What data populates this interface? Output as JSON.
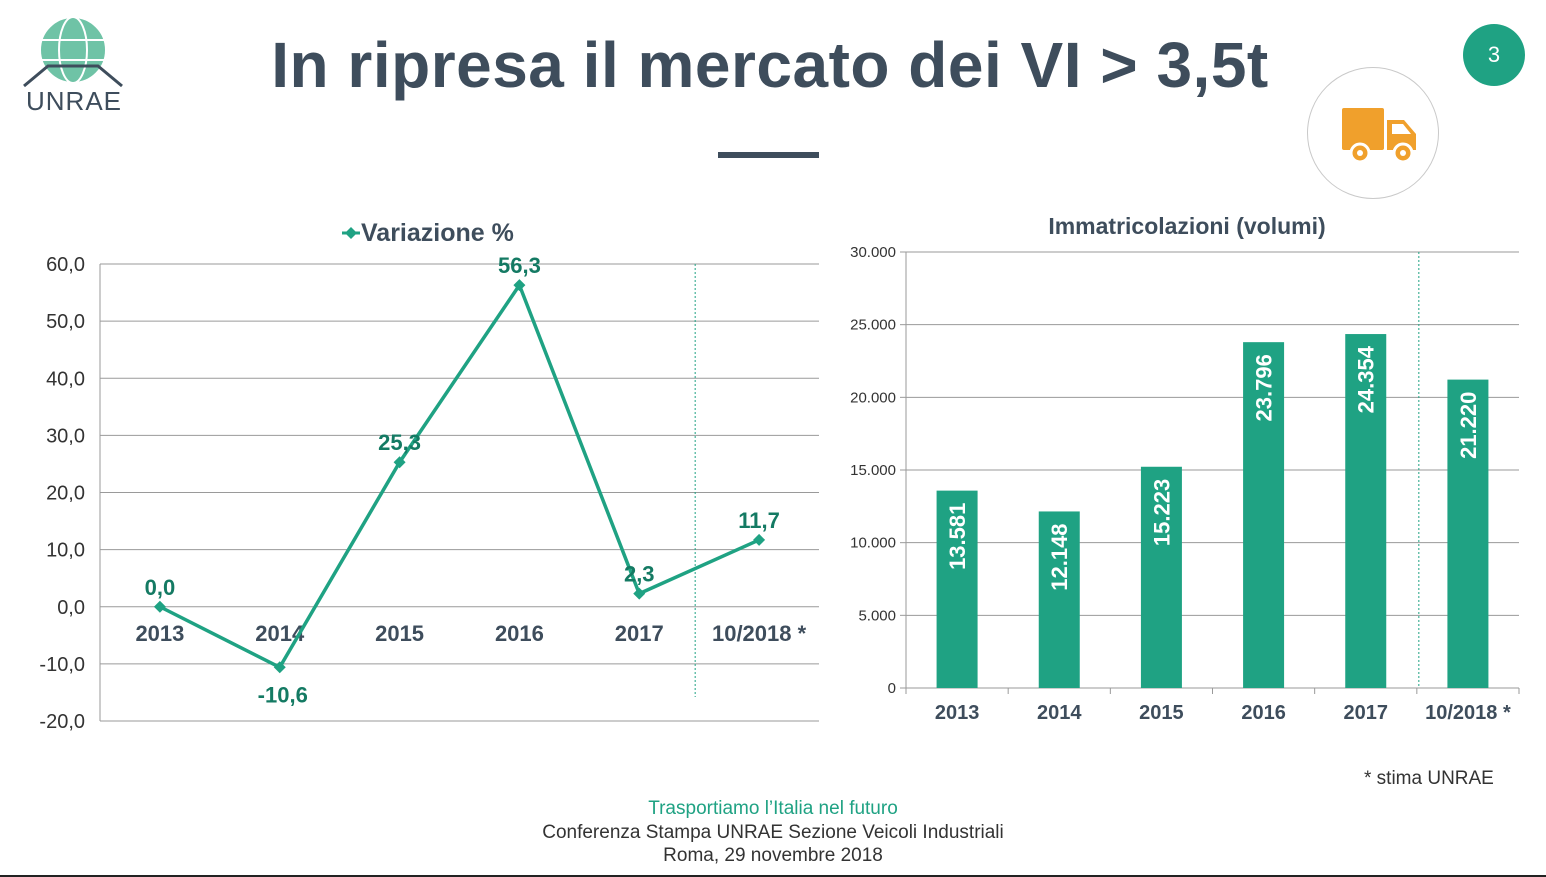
{
  "header": {
    "logo_text": "UNRAE",
    "title": "In ripresa il mercato dei VI > 3,5t",
    "page_number": "3",
    "icon": "truck-icon",
    "accent_color": "#1fa283",
    "icon_color": "#f0a02c"
  },
  "footnote": "* stima UNRAE",
  "footer": {
    "tagline": "Trasportiamo l’Italia nel futuro",
    "event": "Conferenza Stampa UNRAE Sezione Veicoli Industriali",
    "place_date": "Roma, 29 novembre 2018"
  },
  "chart_data": [
    {
      "type": "line",
      "title": "",
      "legend": "Variazione %",
      "legend_position": "top",
      "categories": [
        "2013",
        "2014",
        "2015",
        "2016",
        "2017",
        "10/2018 *"
      ],
      "series": [
        {
          "name": "Variazione %",
          "values": [
            0.0,
            -10.6,
            25.3,
            56.3,
            2.3,
            11.7
          ],
          "labels": [
            "0,0",
            "-10,6",
            "25,3",
            "56,3",
            "2,3",
            "11,7"
          ],
          "color": "#1fa283"
        }
      ],
      "ylim": [
        -20,
        60
      ],
      "yticks": [
        "-20,0",
        "-10,0",
        "0,0",
        "10,0",
        "20,0",
        "30,0",
        "40,0",
        "50,0",
        "60,0"
      ],
      "grid": true,
      "estimate_separator_after": "2017"
    },
    {
      "type": "bar",
      "title": "Immatricolazioni (volumi)",
      "categories": [
        "2013",
        "2014",
        "2015",
        "2016",
        "2017",
        "10/2018 *"
      ],
      "values": [
        13581,
        12148,
        15223,
        23796,
        24354,
        21220
      ],
      "labels": [
        "13.581",
        "12.148",
        "15.223",
        "23.796",
        "24.354",
        "21.220"
      ],
      "color": "#1fa283",
      "ylim": [
        0,
        30000
      ],
      "yticks": [
        "0",
        "5.000",
        "10.000",
        "15.000",
        "20.000",
        "25.000",
        "30.000"
      ],
      "grid": true,
      "estimate_separator_after": "2017"
    }
  ]
}
